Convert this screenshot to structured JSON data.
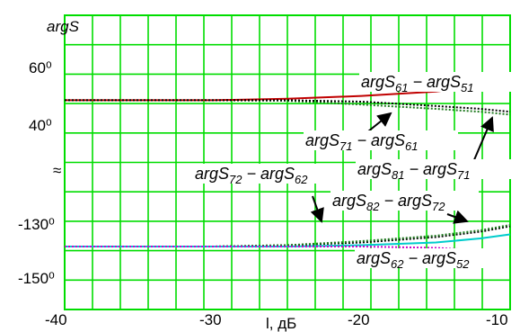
{
  "chart_data": {
    "type": "line",
    "ylabel": "argS",
    "xlabel": "l, дБ",
    "xlim": [
      -40,
      -10
    ],
    "x_ticks": [
      "-40",
      "-30",
      "-20",
      "-10"
    ],
    "y_ticks_upper": [
      "60⁰",
      "40⁰"
    ],
    "y_ticks_lower": [
      "-130⁰",
      "-150⁰"
    ],
    "axis_break": "≈",
    "grid": true,
    "annotations": [
      {
        "main": "argS",
        "sub": "61",
        "sep": " − ",
        "main2": "argS",
        "sub2": "51"
      },
      {
        "main": "argS",
        "sub": "71",
        "sep": " − ",
        "main2": "argS",
        "sub2": "61"
      },
      {
        "main": "argS",
        "sub": "72",
        "sep": " − ",
        "main2": "argS",
        "sub2": "62"
      },
      {
        "main": "argS",
        "sub": "81",
        "sep": " − ",
        "main2": "argS",
        "sub2": "71"
      },
      {
        "main": "argS",
        "sub": "82",
        "sep": " − ",
        "main2": "argS",
        "sub2": "72"
      },
      {
        "main": "argS",
        "sub": "62",
        "sep": " − ",
        "main2": "argS",
        "sub2": "52"
      }
    ],
    "series": [
      {
        "color": "#c00000",
        "dash": "",
        "x": [
          -40,
          -30,
          -25,
          -20,
          -15,
          -12,
          -10
        ],
        "y": [
          48,
          48,
          48.5,
          49.5,
          51,
          53,
          55
        ]
      },
      {
        "color": "#1f7a1f",
        "dash": "2,2",
        "x": [
          -40,
          -30,
          -25,
          -20,
          -15,
          -12,
          -10
        ],
        "y": [
          48,
          48,
          47.8,
          46.5,
          45,
          44,
          43
        ]
      },
      {
        "color": "#000000",
        "dash": "2,2",
        "x": [
          -40,
          -30,
          -25,
          -20,
          -15,
          -12,
          -10
        ],
        "y": [
          48,
          48,
          48,
          47.5,
          46,
          45,
          44
        ]
      },
      {
        "color": "#00cccc",
        "dash": "",
        "x": [
          -40,
          -30,
          -25,
          -20,
          -15,
          -12,
          -10
        ],
        "y": [
          -139,
          -139,
          -139,
          -138.5,
          -137.5,
          -136,
          -134.5
        ]
      },
      {
        "color": "#000000",
        "dash": "2,2",
        "x": [
          -40,
          -30,
          -25,
          -20,
          -15,
          -12,
          -10
        ],
        "y": [
          -139,
          -139,
          -138.5,
          -137.5,
          -135.5,
          -133.5,
          -131.5
        ]
      },
      {
        "color": "#1f7a1f",
        "dash": "2,2",
        "x": [
          -40,
          -30,
          -25,
          -20,
          -15,
          -12,
          -10
        ],
        "y": [
          -139,
          -139,
          -138.5,
          -137,
          -135,
          -133,
          -131
        ]
      },
      {
        "color": "#cc00cc",
        "dash": "2,2",
        "x": [
          -40,
          -30,
          -25,
          -20,
          -15,
          -12,
          -10
        ],
        "y": [
          -139,
          -139,
          -139,
          -139,
          -139.5,
          -140.5,
          -142
        ]
      }
    ]
  }
}
